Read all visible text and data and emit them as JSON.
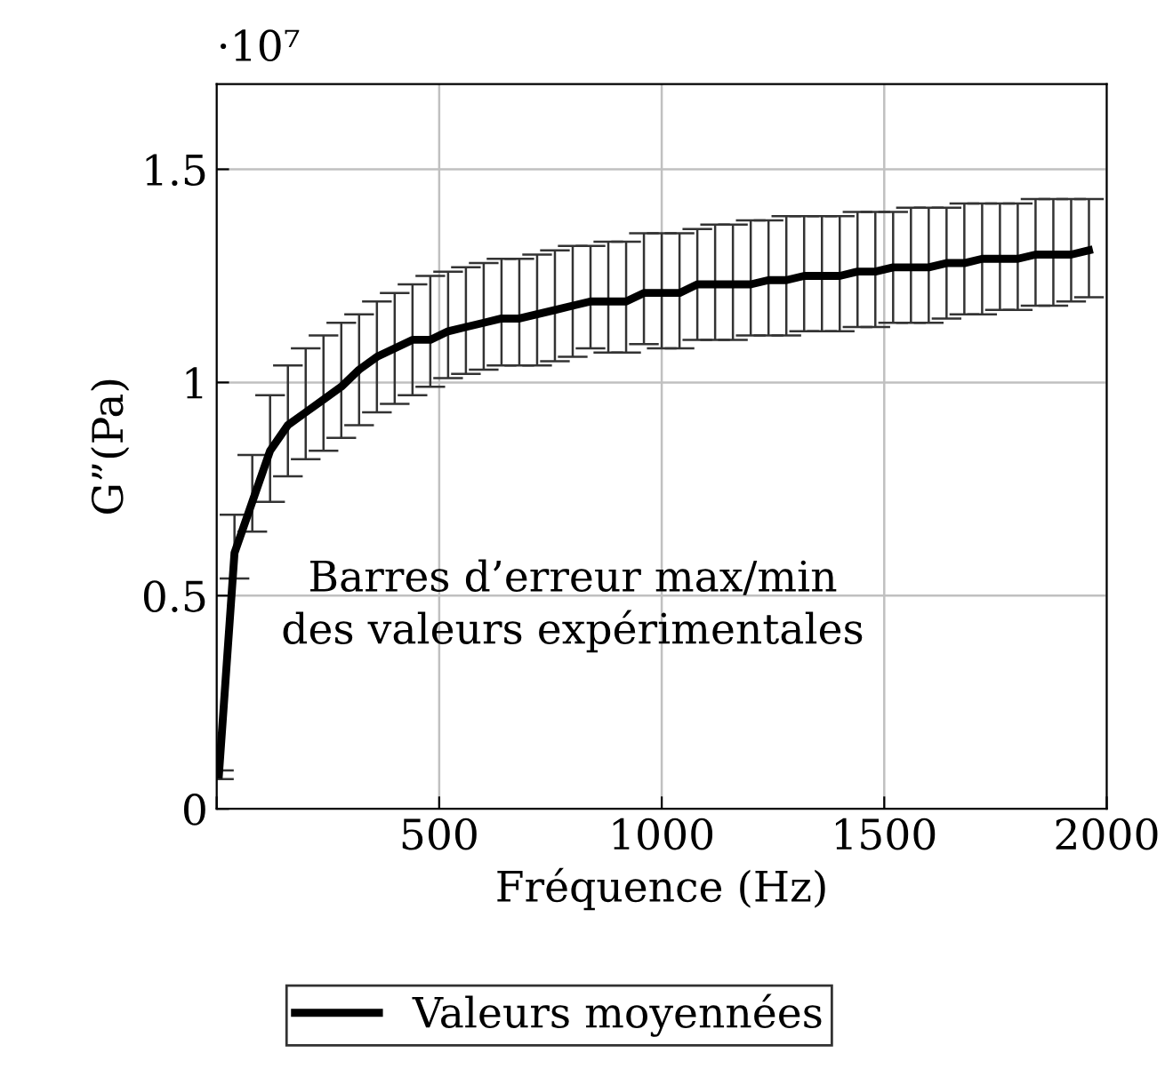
{
  "chart_data": {
    "type": "line",
    "xlabel": "Fréquence (Hz)",
    "ylabel": "G”(Pa)",
    "annotations": [
      "·10⁷",
      "Barres d’erreur max/min\ndes valeurs expérimentales"
    ],
    "xlim": [
      0,
      2000
    ],
    "xticks": [
      {
        "value": 0,
        "label": null
      },
      500,
      1000,
      1500,
      2000
    ],
    "ylim": [
      0,
      1.7
    ],
    "yticks": [
      0,
      0.5,
      1,
      1.5
    ],
    "grid": true,
    "legend": "bottom",
    "marker": "none",
    "line_style": "solid",
    "series": [
      {
        "name": "Valeurs moyennées",
        "color": "#000000",
        "x": [
          5,
          40,
          80,
          120,
          160,
          200,
          240,
          280,
          320,
          360,
          400,
          440,
          480,
          520,
          560,
          600,
          640,
          680,
          720,
          760,
          800,
          840,
          880,
          920,
          960,
          1000,
          1040,
          1080,
          1120,
          1160,
          1200,
          1240,
          1280,
          1320,
          1360,
          1400,
          1440,
          1480,
          1520,
          1560,
          1600,
          1640,
          1680,
          1720,
          1760,
          1800,
          1840,
          1880,
          1920,
          1960
        ],
        "values": [
          0.08,
          0.6,
          0.72,
          0.84,
          0.9,
          0.93,
          0.96,
          0.99,
          1.03,
          1.06,
          1.08,
          1.1,
          1.1,
          1.12,
          1.13,
          1.14,
          1.15,
          1.15,
          1.16,
          1.17,
          1.18,
          1.19,
          1.19,
          1.19,
          1.21,
          1.21,
          1.21,
          1.23,
          1.23,
          1.23,
          1.23,
          1.24,
          1.24,
          1.25,
          1.25,
          1.25,
          1.26,
          1.26,
          1.27,
          1.27,
          1.27,
          1.28,
          1.28,
          1.29,
          1.29,
          1.29,
          1.3,
          1.3,
          1.3,
          1.31
        ],
        "errors": [
          [
            0.07,
            0.09
          ],
          [
            0.54,
            0.69
          ],
          [
            0.65,
            0.83
          ],
          [
            0.72,
            0.97
          ],
          [
            0.78,
            1.04
          ],
          [
            0.82,
            1.08
          ],
          [
            0.84,
            1.11
          ],
          [
            0.87,
            1.14
          ],
          [
            0.9,
            1.16
          ],
          [
            0.93,
            1.19
          ],
          [
            0.95,
            1.21
          ],
          [
            0.97,
            1.23
          ],
          [
            0.99,
            1.25
          ],
          [
            1.01,
            1.26
          ],
          [
            1.02,
            1.27
          ],
          [
            1.03,
            1.28
          ],
          [
            1.04,
            1.29
          ],
          [
            1.04,
            1.29
          ],
          [
            1.04,
            1.3
          ],
          [
            1.05,
            1.31
          ],
          [
            1.06,
            1.32
          ],
          [
            1.08,
            1.32
          ],
          [
            1.07,
            1.33
          ],
          [
            1.07,
            1.33
          ],
          [
            1.09,
            1.35
          ],
          [
            1.08,
            1.35
          ],
          [
            1.08,
            1.35
          ],
          [
            1.1,
            1.36
          ],
          [
            1.1,
            1.37
          ],
          [
            1.1,
            1.37
          ],
          [
            1.11,
            1.38
          ],
          [
            1.11,
            1.38
          ],
          [
            1.11,
            1.39
          ],
          [
            1.12,
            1.39
          ],
          [
            1.12,
            1.39
          ],
          [
            1.12,
            1.39
          ],
          [
            1.13,
            1.4
          ],
          [
            1.13,
            1.4
          ],
          [
            1.14,
            1.4
          ],
          [
            1.14,
            1.41
          ],
          [
            1.14,
            1.41
          ],
          [
            1.15,
            1.41
          ],
          [
            1.16,
            1.42
          ],
          [
            1.16,
            1.42
          ],
          [
            1.17,
            1.42
          ],
          [
            1.17,
            1.42
          ],
          [
            1.18,
            1.43
          ],
          [
            1.18,
            1.43
          ],
          [
            1.19,
            1.43
          ],
          [
            1.2,
            1.43
          ]
        ]
      }
    ]
  }
}
